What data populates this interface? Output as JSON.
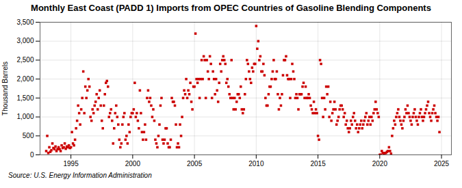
{
  "chart_data": {
    "type": "scatter",
    "title": "Monthly East Coast (PADD 1) Imports from OPEC Countries of Gasoline Blending Components",
    "ylabel": "Thousand Barrels",
    "source": "Source: U.S. Energy Information Administration",
    "color": "#cc0000",
    "marker": "square",
    "grid": true,
    "xlim": [
      1992.5,
      2025.8
    ],
    "ylim": [
      0,
      3500
    ],
    "xticks": [
      1995,
      2000,
      2005,
      2010,
      2015,
      2020,
      2025
    ],
    "yticks": [
      0,
      500,
      {
        "value": 1000,
        "label": "1,000"
      },
      {
        "value": 1500,
        "label": "1,500"
      },
      {
        "value": 2000,
        "label": "2,000"
      },
      {
        "value": 2500,
        "label": "2,500"
      },
      {
        "value": 3000,
        "label": "3,000"
      },
      {
        "value": 3500,
        "label": "3,500"
      }
    ],
    "x": [
      1993.0,
      1993.083,
      1993.167,
      1993.25,
      1993.333,
      1993.417,
      1993.5,
      1993.583,
      1993.667,
      1993.75,
      1993.833,
      1993.917,
      1994.0,
      1994.083,
      1994.167,
      1994.25,
      1994.333,
      1994.417,
      1994.5,
      1994.583,
      1994.667,
      1994.75,
      1994.833,
      1994.917,
      1995.0,
      1995.083,
      1995.167,
      1995.25,
      1995.333,
      1995.417,
      1995.5,
      1995.583,
      1995.667,
      1995.75,
      1995.833,
      1995.917,
      1996.0,
      1996.083,
      1996.167,
      1996.25,
      1996.333,
      1996.417,
      1996.5,
      1996.583,
      1996.667,
      1996.75,
      1996.833,
      1996.917,
      1997.0,
      1997.083,
      1997.167,
      1997.25,
      1997.333,
      1997.417,
      1997.5,
      1997.583,
      1997.667,
      1997.75,
      1997.833,
      1997.917,
      1998.0,
      1998.083,
      1998.167,
      1998.25,
      1998.333,
      1998.417,
      1998.5,
      1998.583,
      1998.667,
      1998.75,
      1998.833,
      1998.917,
      1999.0,
      1999.083,
      1999.167,
      1999.25,
      1999.333,
      1999.417,
      1999.5,
      1999.583,
      1999.667,
      1999.75,
      1999.833,
      1999.917,
      2000.0,
      2000.083,
      2000.167,
      2000.25,
      2000.333,
      2000.417,
      2000.5,
      2000.583,
      2000.667,
      2000.75,
      2000.833,
      2000.917,
      2001.0,
      2001.083,
      2001.167,
      2001.25,
      2001.333,
      2001.417,
      2001.5,
      2001.583,
      2001.667,
      2001.75,
      2001.833,
      2001.917,
      2002.0,
      2002.083,
      2002.167,
      2002.25,
      2002.333,
      2002.417,
      2002.5,
      2002.583,
      2002.667,
      2002.75,
      2002.833,
      2002.917,
      2003.0,
      2003.083,
      2003.167,
      2003.25,
      2003.333,
      2003.417,
      2003.5,
      2003.583,
      2003.667,
      2003.75,
      2003.833,
      2003.917,
      2004.0,
      2004.083,
      2004.167,
      2004.25,
      2004.333,
      2004.417,
      2004.5,
      2004.583,
      2004.667,
      2004.75,
      2004.833,
      2004.917,
      2005.0,
      2005.083,
      2005.167,
      2005.25,
      2005.333,
      2005.417,
      2005.5,
      2005.583,
      2005.667,
      2005.75,
      2005.833,
      2005.917,
      2006.0,
      2006.083,
      2006.167,
      2006.25,
      2006.333,
      2006.417,
      2006.5,
      2006.583,
      2006.667,
      2006.75,
      2006.833,
      2006.917,
      2007.0,
      2007.083,
      2007.167,
      2007.25,
      2007.333,
      2007.417,
      2007.5,
      2007.583,
      2007.667,
      2007.75,
      2007.833,
      2007.917,
      2008.0,
      2008.083,
      2008.167,
      2008.25,
      2008.333,
      2008.417,
      2008.5,
      2008.583,
      2008.667,
      2008.75,
      2008.833,
      2008.917,
      2009.0,
      2009.083,
      2009.167,
      2009.25,
      2009.333,
      2009.417,
      2009.5,
      2009.583,
      2009.667,
      2009.75,
      2009.833,
      2009.917,
      2010.0,
      2010.083,
      2010.167,
      2010.25,
      2010.333,
      2010.417,
      2010.5,
      2010.583,
      2010.667,
      2010.75,
      2010.833,
      2010.917,
      2011.0,
      2011.083,
      2011.167,
      2011.25,
      2011.333,
      2011.417,
      2011.5,
      2011.583,
      2011.667,
      2011.75,
      2011.833,
      2011.917,
      2012.0,
      2012.083,
      2012.167,
      2012.25,
      2012.333,
      2012.417,
      2012.5,
      2012.583,
      2012.667,
      2012.75,
      2012.833,
      2012.917,
      2013.0,
      2013.083,
      2013.167,
      2013.25,
      2013.333,
      2013.417,
      2013.5,
      2013.583,
      2013.667,
      2013.75,
      2013.833,
      2013.917,
      2014.0,
      2014.083,
      2014.167,
      2014.25,
      2014.333,
      2014.417,
      2014.5,
      2014.583,
      2014.667,
      2014.75,
      2014.833,
      2014.917,
      2015.0,
      2015.083,
      2015.167,
      2015.25,
      2015.333,
      2015.417,
      2015.5,
      2015.583,
      2015.667,
      2015.75,
      2015.833,
      2015.917,
      2016.0,
      2016.083,
      2016.167,
      2016.25,
      2016.333,
      2016.417,
      2016.5,
      2016.583,
      2016.667,
      2016.75,
      2016.833,
      2016.917,
      2017.0,
      2017.083,
      2017.167,
      2017.25,
      2017.333,
      2017.417,
      2017.5,
      2017.583,
      2017.667,
      2017.75,
      2017.833,
      2017.917,
      2018.0,
      2018.083,
      2018.167,
      2018.25,
      2018.333,
      2018.417,
      2018.5,
      2018.583,
      2018.667,
      2018.75,
      2018.833,
      2018.917,
      2019.0,
      2019.083,
      2019.167,
      2019.25,
      2019.333,
      2019.417,
      2019.5,
      2019.583,
      2019.667,
      2019.75,
      2019.833,
      2019.917,
      2020.0,
      2020.083,
      2020.167,
      2020.25,
      2020.333,
      2020.417,
      2020.5,
      2020.583,
      2020.667,
      2020.75,
      2020.833,
      2020.917,
      2021.0,
      2021.083,
      2021.167,
      2021.25,
      2021.333,
      2021.417,
      2021.5,
      2021.583,
      2021.667,
      2021.75,
      2021.833,
      2021.917,
      2022.0,
      2022.083,
      2022.167,
      2022.25,
      2022.333,
      2022.417,
      2022.5,
      2022.583,
      2022.667,
      2022.75,
      2022.833,
      2022.917,
      2023.0,
      2023.083,
      2023.167,
      2023.25,
      2023.333,
      2023.417,
      2023.5,
      2023.583,
      2023.667,
      2023.75,
      2023.833,
      2023.917,
      2024.0,
      2024.083,
      2024.167,
      2024.25,
      2024.333,
      2024.417,
      2024.5,
      2024.583,
      2024.667,
      2024.75,
      2024.833
    ],
    "values": [
      100,
      500,
      50,
      200,
      80,
      120,
      300,
      180,
      150,
      220,
      100,
      150,
      200,
      150,
      100,
      250,
      180,
      200,
      300,
      160,
      220,
      200,
      250,
      180,
      200,
      600,
      300,
      250,
      400,
      700,
      900,
      1300,
      1100,
      800,
      1200,
      1500,
      2200,
      1100,
      1800,
      1500,
      1700,
      2000,
      1800,
      1000,
      900,
      1200,
      1100,
      1300,
      1400,
      1600,
      1200,
      1500,
      1700,
      1300,
      900,
      700,
      1300,
      1600,
      1900,
      1950,
      1800,
      1000,
      1100,
      1200,
      900,
      300,
      700,
      1100,
      1300,
      1000,
      800,
      400,
      200,
      300,
      800,
      1000,
      1100,
      400,
      500,
      300,
      800,
      600,
      1000,
      1100,
      1100,
      1200,
      1900,
      1000,
      1100,
      900,
      700,
      1700,
      1100,
      600,
      400,
      600,
      800,
      400,
      1500,
      1700,
      1400,
      1500,
      1300,
      1000,
      1200,
      900,
      400,
      300,
      200,
      500,
      800,
      1300,
      1500,
      400,
      300,
      400,
      700,
      700,
      300,
      200,
      200,
      400,
      1500,
      1400,
      1400,
      1300,
      800,
      200,
      300,
      200,
      800,
      500,
      1000,
      1500,
      1700,
      1600,
      2000,
      1500,
      1700,
      1600,
      1900,
      1400,
      1200,
      1800,
      1800,
      3200,
      2000,
      1900,
      2000,
      1500,
      2000,
      2500,
      2000,
      2600,
      2500,
      1500,
      2500,
      2200,
      2000,
      2600,
      2400,
      1500,
      2200,
      2000,
      1600,
      2000,
      1700,
      1400,
      1900,
      2400,
      2200,
      2500,
      2600,
      2500,
      2400,
      1900,
      2000,
      1800,
      1600,
      1500,
      2500,
      1500,
      1200,
      1500,
      1200,
      1400,
      1600,
      1600,
      1500,
      1800,
      1200,
      1100,
      1200,
      1600,
      2000,
      2500,
      2400,
      2200,
      2000,
      1900,
      2300,
      2200,
      2400,
      2400,
      3400,
      2800,
      3000,
      2500,
      2600,
      2200,
      2200,
      2400,
      2100,
      1500,
      1300,
      1300,
      1600,
      1800,
      1800,
      2000,
      2200,
      2500,
      2000,
      2000,
      2200,
      1600,
      1200,
      1500,
      1300,
      1600,
      2100,
      2500,
      2500,
      2600,
      2100,
      2000,
      2000,
      1500,
      2000,
      2400,
      2200,
      2000,
      1500,
      1600,
      1500,
      1200,
      1600,
      1600,
      1600,
      1800,
      1900,
      1500,
      1800,
      1500,
      1500,
      1600,
      1500,
      1300,
      1200,
      1100,
      1400,
      1100,
      1200,
      1100,
      500,
      400,
      2500,
      2400,
      1500,
      1000,
      1500,
      1200,
      1800,
      1600,
      1800,
      1000,
      1400,
      900,
      1100,
      1200,
      1400,
      1200,
      800,
      900,
      1000,
      1200,
      1300,
      1300,
      1200,
      1000,
      1100,
      800,
      900,
      700,
      600,
      700,
      900,
      800,
      1000,
      1100,
      900,
      700,
      800,
      600,
      700,
      800,
      900,
      700,
      800,
      900,
      1000,
      1100,
      800,
      900,
      1000,
      800,
      1000,
      900,
      1100,
      1200,
      1400,
      1200,
      1100,
      1000,
      0,
      5,
      100,
      50,
      0,
      50,
      50,
      80,
      100,
      200,
      100,
      30,
      500,
      700,
      900,
      800,
      1000,
      1100,
      1200,
      1000,
      900,
      800,
      700,
      900,
      1000,
      1200,
      1100,
      1300,
      1100,
      1000,
      900,
      800,
      1000,
      1100,
      1200,
      1000,
      900,
      800,
      1000,
      1100,
      1200,
      1000,
      900,
      1000,
      1100,
      1200,
      1300,
      1400,
      1100,
      1000,
      900,
      1100,
      1200,
      1300,
      1100,
      1000,
      900,
      1000,
      600
    ]
  }
}
